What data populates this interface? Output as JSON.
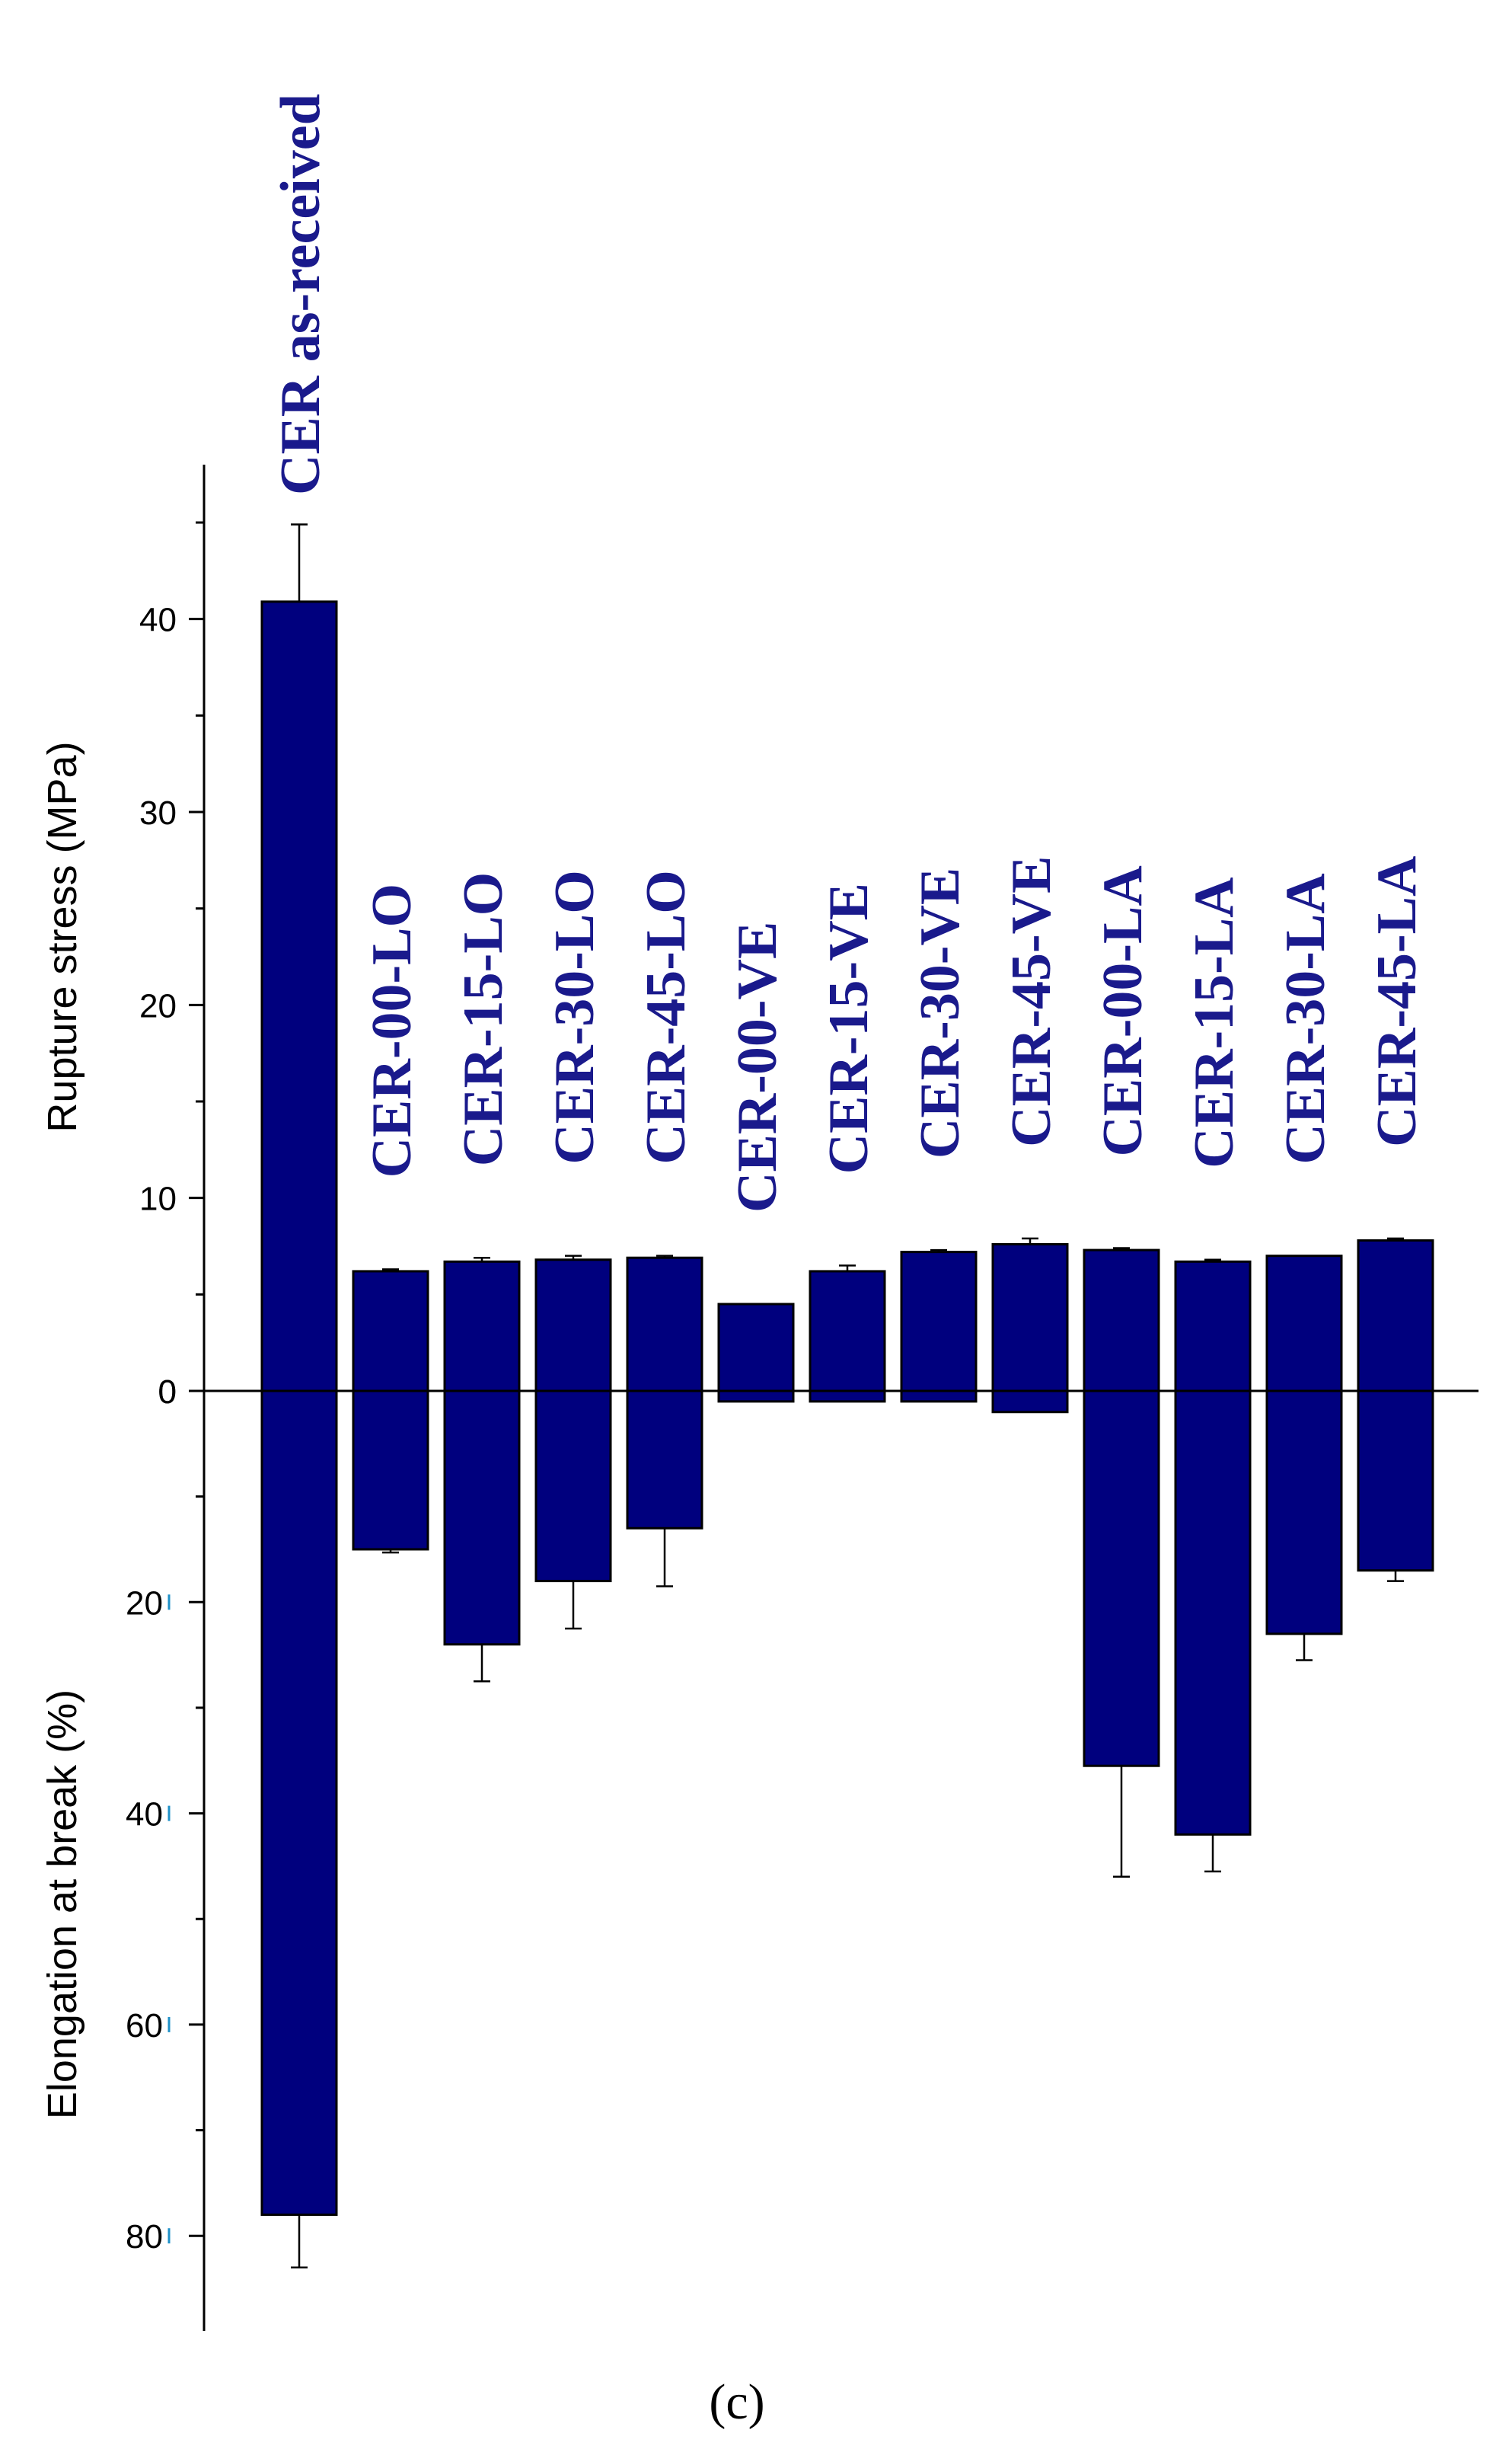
{
  "chart_data": {
    "type": "bar",
    "panel_label": "(c)",
    "categories": [
      "CER as-received",
      "CER-00-LO",
      "CER-15-LO",
      "CER-30-LO",
      "CER-45-LO",
      "CER-00-VE",
      "CER-15-VE",
      "CER-30-VE",
      "CER-45-VE",
      "CER-00-LA",
      "CER-15-LA",
      "CER-30-LA",
      "CER-45-LA"
    ],
    "upper": {
      "ylabel": "Rupture stress (MPa)",
      "ylim": [
        0,
        48
      ],
      "ticks": [
        0,
        10,
        20,
        30,
        40
      ],
      "series": [
        {
          "name": "Rupture stress",
          "values": [
            40.9,
            6.2,
            6.7,
            6.8,
            6.9,
            4.5,
            6.2,
            7.2,
            7.6,
            7.3,
            6.7,
            7.0,
            7.8
          ],
          "errors": [
            4.0,
            0.1,
            0.2,
            0.2,
            0.1,
            0.0,
            0.3,
            0.1,
            0.3,
            0.1,
            0.1,
            0.0,
            0.1
          ]
        }
      ]
    },
    "lower": {
      "ylabel": "Elongation at break (%)",
      "ylim": [
        0,
        89
      ],
      "ticks": [
        0,
        20,
        40,
        60,
        80
      ],
      "series": [
        {
          "name": "Elongation at break",
          "values": [
            78.0,
            15.0,
            24.0,
            18.0,
            13.0,
            1.0,
            1.0,
            1.0,
            2.0,
            35.5,
            42.0,
            23.0,
            17.0
          ],
          "errors": [
            5.0,
            0.3,
            3.5,
            4.5,
            5.5,
            0.0,
            0.0,
            0.0,
            0.0,
            10.5,
            3.5,
            2.5,
            1.0
          ]
        }
      ]
    },
    "colors": {
      "bar": "#00007e",
      "bar_stroke": "#000000",
      "label": "#1a1a8c",
      "axis": "#000000",
      "tick_accent": "#1e90c8"
    }
  }
}
